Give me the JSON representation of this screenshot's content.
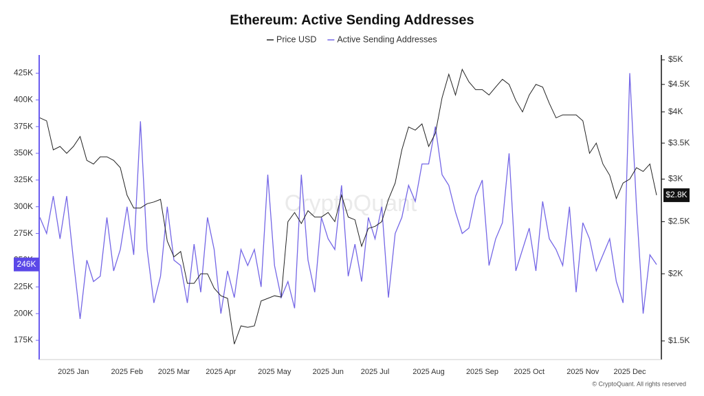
{
  "chart_data": {
    "type": "line",
    "title": "Ethereum: Active Sending Addresses",
    "watermark": "CryptoQuant",
    "footer": "© CryptoQuant. All rights reserved",
    "categories": [
      null,
      null,
      null,
      null,
      null,
      "2025 Jan",
      null,
      null,
      null,
      null,
      null,
      null,
      null,
      "2025 Feb",
      null,
      null,
      null,
      null,
      null,
      null,
      "2025 Mar",
      null,
      null,
      null,
      null,
      null,
      null,
      "2025 Apr",
      null,
      null,
      null,
      null,
      null,
      null,
      null,
      "2025 May",
      null,
      null,
      null,
      null,
      null,
      null,
      null,
      "2025 Jun",
      null,
      null,
      null,
      null,
      null,
      null,
      "2025 Jul",
      null,
      null,
      null,
      null,
      null,
      null,
      null,
      "2025 Aug",
      null,
      null,
      null,
      null,
      null,
      null,
      null,
      "2025 Sep",
      null,
      null,
      null,
      null,
      null,
      null,
      "2025 Oct",
      null,
      null,
      null,
      null,
      null,
      null,
      null,
      "2025 Nov",
      null,
      null,
      null,
      null,
      null,
      null,
      "2025 Dec",
      null,
      null,
      null,
      null
    ],
    "series": [
      {
        "name": "Price USD",
        "color": "#222222",
        "axis": "y2",
        "last_label": "$2.8K",
        "values": [
          3900,
          3850,
          3400,
          3450,
          3350,
          3450,
          3600,
          3250,
          3200,
          3300,
          3300,
          3250,
          3150,
          2800,
          2650,
          2650,
          2700,
          2720,
          2750,
          2300,
          2150,
          2200,
          1920,
          1920,
          2000,
          2000,
          1880,
          1820,
          1800,
          1480,
          1600,
          1590,
          1600,
          1780,
          1800,
          1820,
          1810,
          2500,
          2600,
          2480,
          2620,
          2550,
          2550,
          2600,
          2500,
          2800,
          2550,
          2520,
          2250,
          2430,
          2450,
          2500,
          2750,
          2950,
          3400,
          3750,
          3700,
          3800,
          3450,
          3650,
          4250,
          4700,
          4300,
          4800,
          4550,
          4400,
          4400,
          4300,
          4450,
          4600,
          4500,
          4200,
          4000,
          4300,
          4500,
          4450,
          4150,
          3900,
          3950,
          3950,
          3950,
          3850,
          3350,
          3500,
          3200,
          3050,
          2760,
          2950,
          3000,
          3150,
          3100,
          3200,
          2800
        ]
      },
      {
        "name": "Active Sending Addresses",
        "color": "#7466e6",
        "last_label": "246K",
        "values": [
          290000,
          275000,
          310000,
          270000,
          310000,
          250000,
          195000,
          250000,
          230000,
          235000,
          290000,
          240000,
          260000,
          300000,
          255000,
          380000,
          260000,
          210000,
          235000,
          300000,
          250000,
          245000,
          210000,
          265000,
          220000,
          290000,
          260000,
          200000,
          240000,
          215000,
          260000,
          245000,
          260000,
          225000,
          330000,
          245000,
          215000,
          230000,
          205000,
          330000,
          250000,
          220000,
          290000,
          270000,
          260000,
          320000,
          235000,
          265000,
          230000,
          290000,
          270000,
          300000,
          215000,
          275000,
          290000,
          320000,
          305000,
          340000,
          340000,
          375000,
          330000,
          320000,
          295000,
          275000,
          280000,
          310000,
          325000,
          245000,
          270000,
          285000,
          350000,
          240000,
          260000,
          280000,
          240000,
          305000,
          270000,
          260000,
          245000,
          300000,
          220000,
          285000,
          270000,
          240000,
          255000,
          270000,
          230000,
          210000,
          425000,
          300000,
          200000,
          255000,
          246000
        ]
      }
    ],
    "ylim": [
      157000,
      442000
    ],
    "yticks": [
      {
        "value": 175000,
        "label": "175K"
      },
      {
        "value": 200000,
        "label": "200K"
      },
      {
        "value": 225000,
        "label": "225K"
      },
      {
        "value": 250000,
        "label": "250K"
      },
      {
        "value": 275000,
        "label": "275K"
      },
      {
        "value": 300000,
        "label": "300K"
      },
      {
        "value": 325000,
        "label": "325K"
      },
      {
        "value": 350000,
        "label": "350K"
      },
      {
        "value": 375000,
        "label": "375K"
      },
      {
        "value": 400000,
        "label": "400K"
      },
      {
        "value": 425000,
        "label": "425K"
      }
    ],
    "y2lim": [
      1385,
      5104
    ],
    "y2scale": "log",
    "y2ticks": [
      {
        "value": 1500,
        "label": "$1.5K"
      },
      {
        "value": 2000,
        "label": "$2K"
      },
      {
        "value": 2500,
        "label": "$2.5K"
      },
      {
        "value": 3000,
        "label": "$3K"
      },
      {
        "value": 3500,
        "label": "$3.5K"
      },
      {
        "value": 4000,
        "label": "$4K"
      },
      {
        "value": 4500,
        "label": "$4.5K"
      },
      {
        "value": 5000,
        "label": "$5K"
      }
    ],
    "grid": false
  }
}
